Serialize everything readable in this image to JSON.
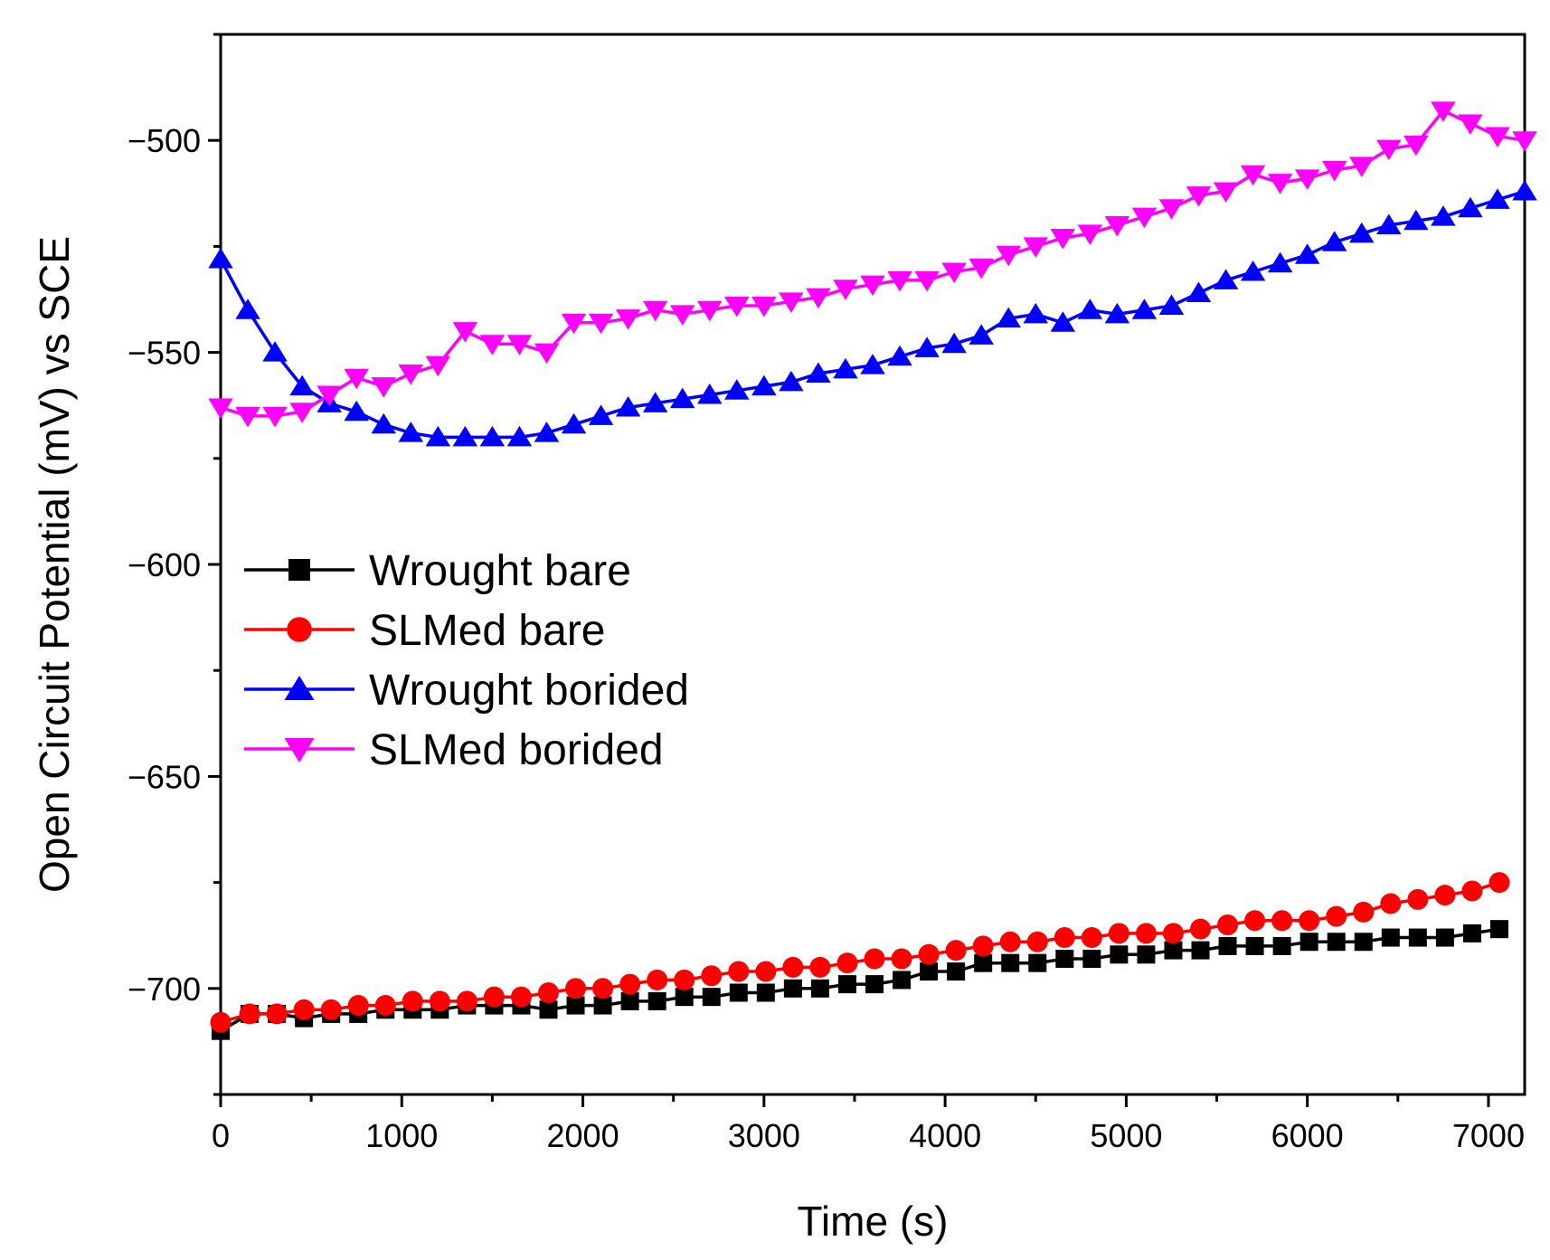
{
  "chart_data": {
    "type": "line",
    "title": "",
    "xlabel": "Time (s)",
    "ylabel": "Open Circuit Potential (mV) vs SCE",
    "xlim": [
      0,
      7200
    ],
    "ylim": [
      -725,
      -475
    ],
    "xticks": [
      0,
      1000,
      2000,
      3000,
      4000,
      5000,
      6000,
      7000
    ],
    "xtick_labels": [
      "0",
      "1000",
      "2000",
      "3000",
      "4000",
      "5000",
      "6000",
      "7000"
    ],
    "yticks": [
      -500,
      -550,
      -600,
      -650,
      -700
    ],
    "ytick_labels": [
      "−500",
      "−550",
      "−600",
      "−650",
      "−700"
    ],
    "grid": false,
    "legend_position": "center-left",
    "series": [
      {
        "name": "Wrought bare",
        "color": "#000000",
        "marker": "square",
        "x": [
          0,
          160,
          310,
          460,
          610,
          760,
          910,
          1060,
          1210,
          1360,
          1510,
          1660,
          1810,
          1960,
          2110,
          2260,
          2410,
          2560,
          2710,
          2860,
          3010,
          3160,
          3310,
          3460,
          3610,
          3760,
          3910,
          4060,
          4210,
          4360,
          4510,
          4660,
          4810,
          4960,
          5110,
          5260,
          5410,
          5560,
          5710,
          5860,
          6010,
          6160,
          6310,
          6460,
          6610,
          6760,
          6910,
          7060
        ],
        "y": [
          -710,
          -706,
          -706,
          -707,
          -706,
          -706,
          -705,
          -705,
          -705,
          -704,
          -704,
          -704,
          -705,
          -704,
          -704,
          -703,
          -703,
          -702,
          -702,
          -701,
          -701,
          -700,
          -700,
          -699,
          -699,
          -698,
          -696,
          -696,
          -694,
          -694,
          -694,
          -693,
          -693,
          -692,
          -692,
          -691,
          -691,
          -690,
          -690,
          -690,
          -689,
          -689,
          -689,
          -688,
          -688,
          -688,
          -687,
          -686
        ]
      },
      {
        "name": "SLMed bare",
        "color": "#ff0000",
        "marker": "circle",
        "x": [
          0,
          160,
          310,
          460,
          610,
          760,
          910,
          1060,
          1210,
          1360,
          1510,
          1660,
          1810,
          1960,
          2110,
          2260,
          2410,
          2560,
          2710,
          2860,
          3010,
          3160,
          3310,
          3460,
          3610,
          3760,
          3910,
          4060,
          4210,
          4360,
          4510,
          4660,
          4810,
          4960,
          5110,
          5260,
          5410,
          5560,
          5710,
          5860,
          6010,
          6160,
          6310,
          6460,
          6610,
          6760,
          6910,
          7060
        ],
        "y": [
          -708,
          -706,
          -706,
          -705,
          -705,
          -704,
          -704,
          -703,
          -703,
          -703,
          -702,
          -702,
          -701,
          -700,
          -700,
          -699,
          -698,
          -698,
          -697,
          -696,
          -696,
          -695,
          -695,
          -694,
          -693,
          -693,
          -692,
          -691,
          -690,
          -689,
          -689,
          -688,
          -688,
          -687,
          -687,
          -687,
          -686,
          -685,
          -684,
          -684,
          -684,
          -683,
          -682,
          -680,
          -679,
          -678,
          -677,
          -675
        ]
      },
      {
        "name": "Wrought borided",
        "color": "#0000ff",
        "marker": "triangle-up",
        "x": [
          0,
          150,
          300,
          450,
          600,
          750,
          900,
          1050,
          1200,
          1350,
          1500,
          1650,
          1800,
          1950,
          2100,
          2250,
          2400,
          2550,
          2700,
          2850,
          3000,
          3150,
          3300,
          3450,
          3600,
          3750,
          3900,
          4050,
          4200,
          4350,
          4500,
          4650,
          4800,
          4950,
          5100,
          5250,
          5400,
          5550,
          5700,
          5850,
          6000,
          6150,
          6300,
          6450,
          6600,
          6750,
          6900,
          7050,
          7200
        ],
        "y": [
          -528,
          -540,
          -550,
          -558,
          -562,
          -564,
          -567,
          -569,
          -570,
          -570,
          -570,
          -570,
          -569,
          -567,
          -565,
          -563,
          -562,
          -561,
          -560,
          -559,
          -558,
          -557,
          -555,
          -554,
          -553,
          -551,
          -549,
          -548,
          -546,
          -542,
          -541,
          -543,
          -540,
          -541,
          -540,
          -539,
          -536,
          -533,
          -531,
          -529,
          -527,
          -524,
          -522,
          -520,
          -519,
          -518,
          -516,
          -514,
          -512
        ]
      },
      {
        "name": "SLMed borided",
        "color": "#ff00ff",
        "marker": "triangle-down",
        "x": [
          0,
          150,
          300,
          450,
          600,
          750,
          900,
          1050,
          1200,
          1350,
          1500,
          1650,
          1800,
          1950,
          2100,
          2250,
          2400,
          2550,
          2700,
          2850,
          3000,
          3150,
          3300,
          3450,
          3600,
          3750,
          3900,
          4050,
          4200,
          4350,
          4500,
          4650,
          4800,
          4950,
          5100,
          5250,
          5400,
          5550,
          5700,
          5850,
          6000,
          6150,
          6300,
          6450,
          6600,
          6750,
          6900,
          7050,
          7200
        ],
        "y": [
          -563,
          -565,
          -565,
          -564,
          -560,
          -556,
          -558,
          -555,
          -553,
          -545,
          -548,
          -548,
          -550,
          -543,
          -543,
          -542,
          -540,
          -541,
          -540,
          -539,
          -539,
          -538,
          -537,
          -535,
          -534,
          -533,
          -533,
          -531,
          -530,
          -527,
          -525,
          -523,
          -522,
          -520,
          -518,
          -516,
          -513,
          -512,
          -508,
          -510,
          -509,
          -507,
          -506,
          -502,
          -501,
          -493,
          -496,
          -499,
          -500
        ]
      }
    ]
  }
}
